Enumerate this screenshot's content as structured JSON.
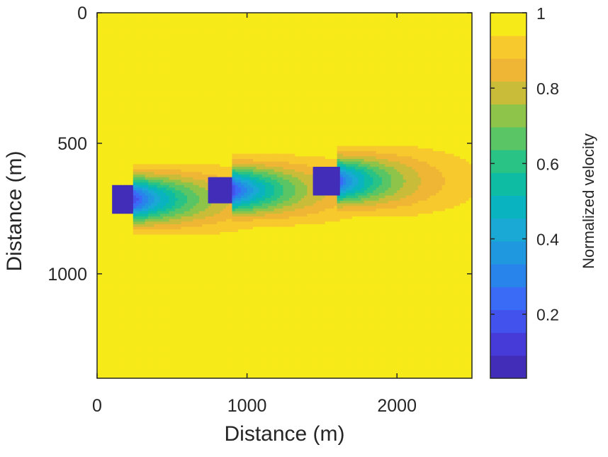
{
  "chart_data": {
    "type": "heatmap",
    "xlabel": "Distance (m)",
    "ylabel": "Distance (m)",
    "xlim": [
      0,
      2500
    ],
    "ylim": [
      0,
      1400
    ],
    "y_reversed": true,
    "xticks": [
      0,
      1000,
      2000
    ],
    "xtick_labels": [
      "0",
      "1000",
      "2000"
    ],
    "yticks": [
      0,
      500,
      1000
    ],
    "ytick_labels": [
      "0",
      "500",
      "1000"
    ],
    "background_value": 1.0,
    "obstacles": [
      {
        "x0": 110,
        "x1": 240,
        "y0": 665,
        "y1": 765,
        "value": 0.03
      },
      {
        "x0": 745,
        "x1": 895,
        "y0": 630,
        "y1": 730,
        "value": 0.03
      },
      {
        "x0": 1440,
        "x1": 1610,
        "y0": 595,
        "y1": 695,
        "value": 0.03
      }
    ],
    "wakes": [
      {
        "x_start": 240,
        "x_end": 2500,
        "y_center": 715,
        "half_width": 75,
        "spread": 0.07,
        "min_value": 0.15,
        "core_length": 380
      },
      {
        "x_start": 895,
        "x_end": 2500,
        "y_center": 680,
        "half_width": 75,
        "spread": 0.07,
        "min_value": 0.15,
        "core_length": 370
      },
      {
        "x_start": 1610,
        "x_end": 2500,
        "y_center": 645,
        "half_width": 75,
        "spread": 0.09,
        "min_value": 0.22,
        "core_length": 340
      }
    ],
    "colorbar": {
      "label": "Normalized velocity",
      "range": [
        0.03,
        1.0
      ],
      "ticks": [
        0.2,
        0.4,
        0.6,
        0.8,
        1.0
      ],
      "tick_labels": [
        "0.2",
        "0.4",
        "0.6",
        "0.8",
        "1"
      ],
      "levels": 16,
      "colormap": "parula"
    }
  }
}
